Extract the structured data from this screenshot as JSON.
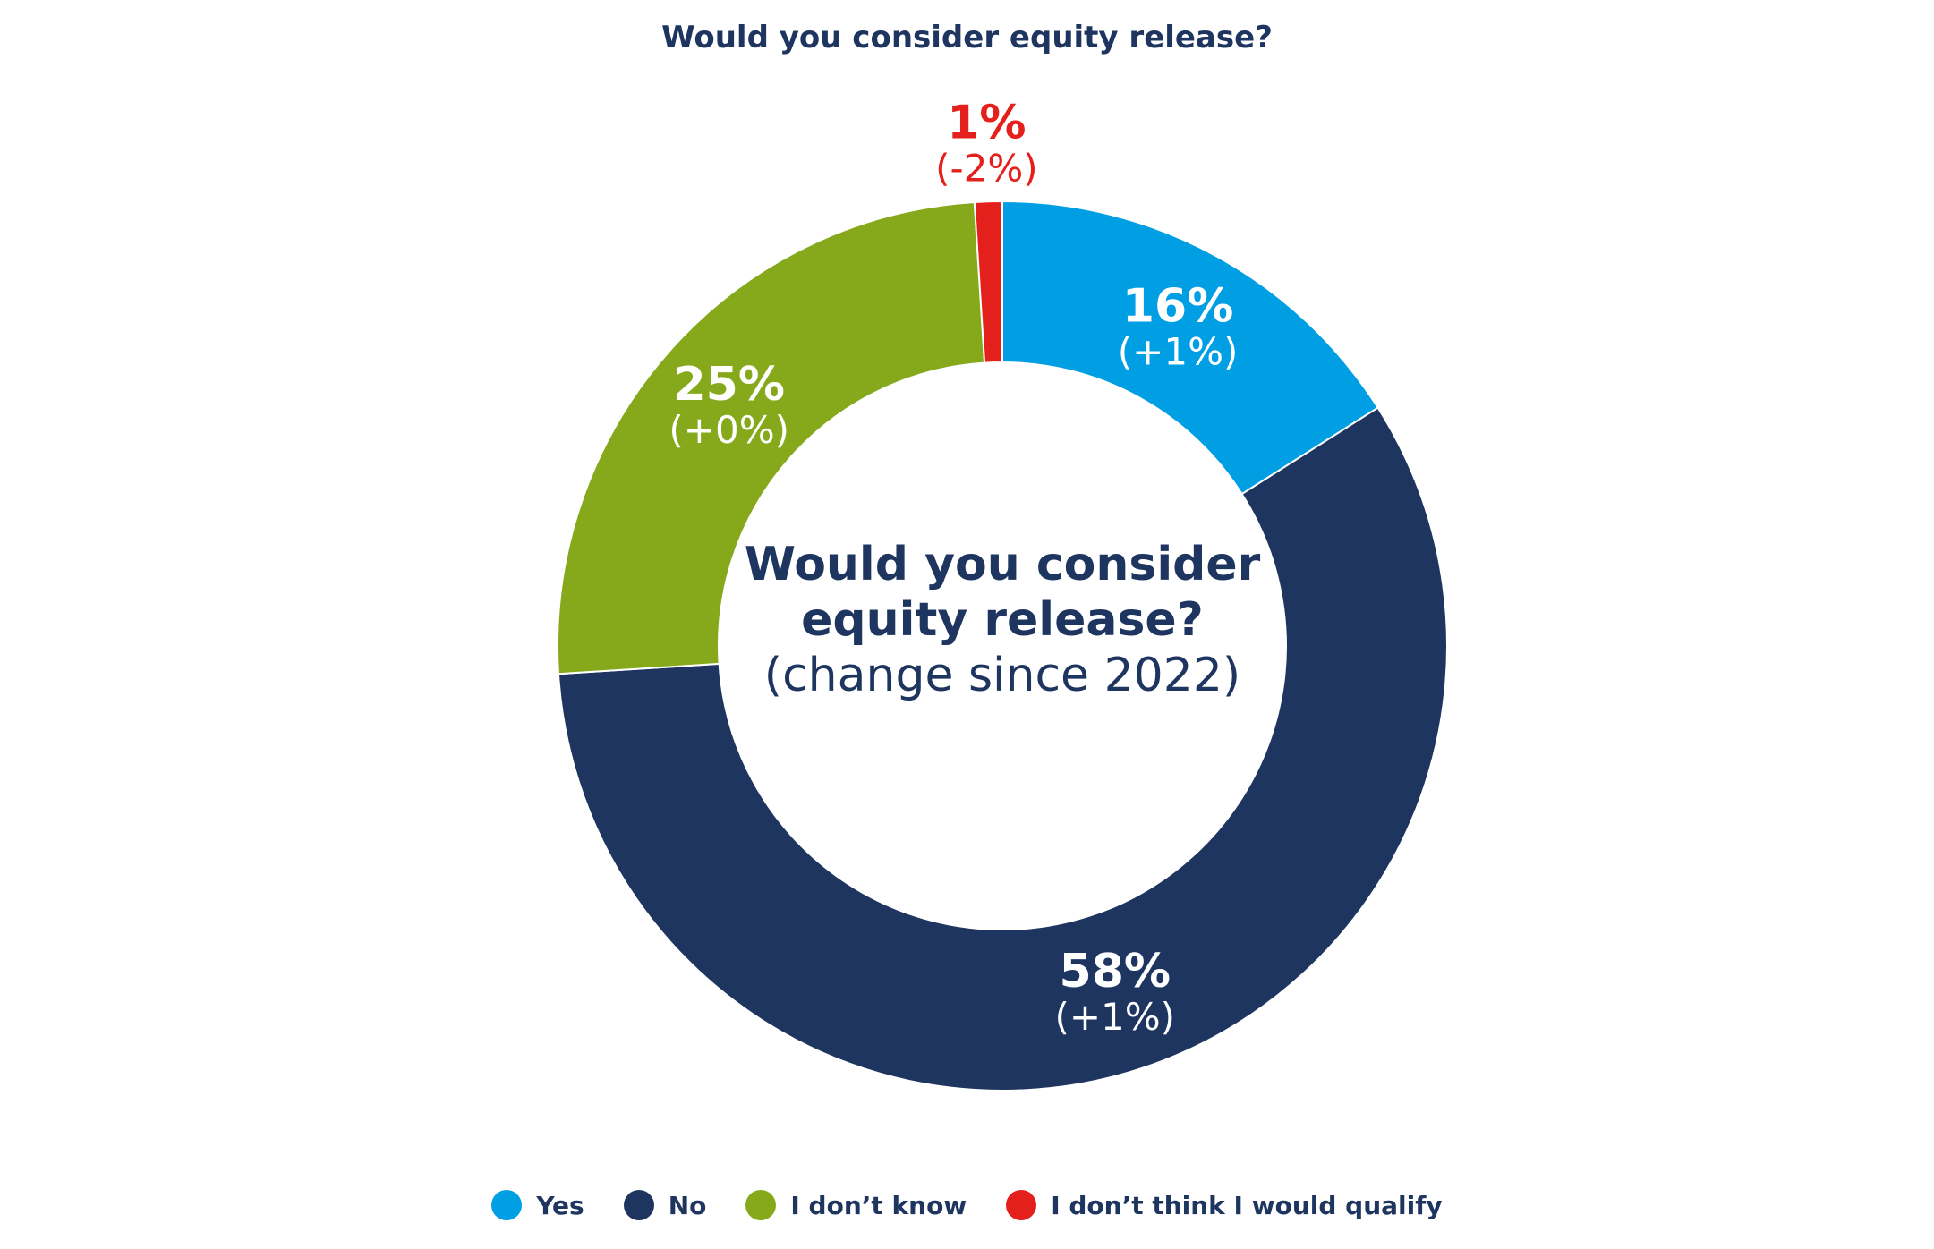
{
  "chart_data": {
    "type": "pie",
    "title": "Would you consider equity release?",
    "center_label": {
      "line1": "Would you consider",
      "line2": "equity release?",
      "line3": "(change since 2022)"
    },
    "slices": [
      {
        "name": "Yes",
        "value": 16,
        "label": "16%",
        "change": "(+1%)",
        "color": "#009fe3"
      },
      {
        "name": "No",
        "value": 58,
        "label": "58%",
        "change": "(+1%)",
        "color": "#1e3560"
      },
      {
        "name": "I don’t know",
        "value": 25,
        "label": "25%",
        "change": "(+0%)",
        "color": "#86a91c"
      },
      {
        "name": "I don’t think I would qualify",
        "value": 1,
        "label": "1%",
        "change": "(-2%)",
        "color": "#e3201b"
      }
    ],
    "legend_position": "bottom"
  }
}
